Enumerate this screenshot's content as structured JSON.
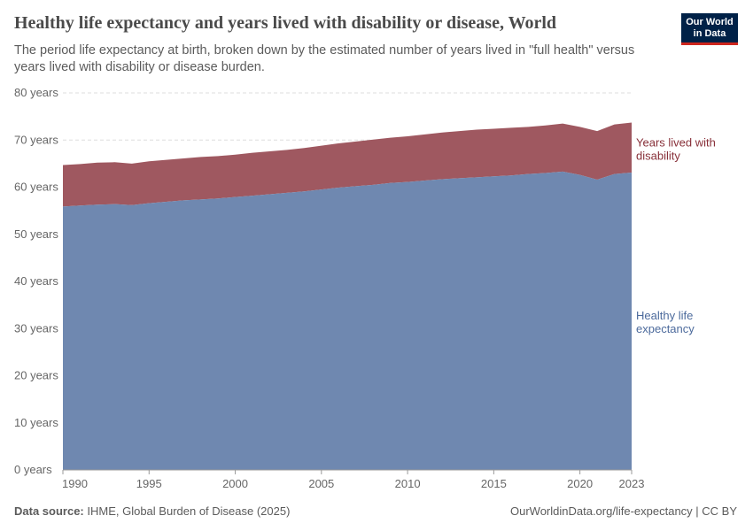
{
  "header": {
    "title": "Healthy life expectancy and years lived with disability or disease, World",
    "subtitle": "The period life expectancy at birth, broken down by the estimated number of years lived in \"full health\" versus years lived with disability or disease burden.",
    "logo_text": "Our World in Data"
  },
  "footer": {
    "source_label": "Data source:",
    "source": "IHME, Global Burden of Disease (2025)",
    "url": "OurWorldinData.org/life-expectancy | CC BY"
  },
  "colors": {
    "healthy": "#6f88b0",
    "disability": "#9f5860",
    "healthy_label": "#4c6a9c",
    "disability_label": "#883039",
    "brand": "#002147"
  },
  "chart_data": {
    "type": "area",
    "stacked": true,
    "title": "Healthy life expectancy and years lived with disability or disease, World",
    "ylim": [
      0,
      80
    ],
    "xlim": [
      1990,
      2023
    ],
    "grid": "horizontal dashed",
    "yticks": [
      0,
      10,
      20,
      30,
      40,
      50,
      60,
      70,
      80
    ],
    "ytick_labels": [
      "0 years",
      "10 years",
      "20 years",
      "30 years",
      "40 years",
      "50 years",
      "60 years",
      "70 years",
      "80 years"
    ],
    "xticks": [
      1990,
      1995,
      2000,
      2005,
      2010,
      2015,
      2020,
      2023
    ],
    "xtick_labels": [
      "1990",
      "1995",
      "2000",
      "2005",
      "2010",
      "2015",
      "2020",
      "2023"
    ],
    "x": [
      1990,
      1991,
      1992,
      1993,
      1994,
      1995,
      1996,
      1997,
      1998,
      1999,
      2000,
      2001,
      2002,
      2003,
      2004,
      2005,
      2006,
      2007,
      2008,
      2009,
      2010,
      2011,
      2012,
      2013,
      2014,
      2015,
      2016,
      2017,
      2018,
      2019,
      2020,
      2021,
      2022,
      2023
    ],
    "series": [
      {
        "name": "Healthy life expectancy",
        "values": [
          55.9,
          56.1,
          56.3,
          56.4,
          56.2,
          56.6,
          56.9,
          57.2,
          57.4,
          57.6,
          57.9,
          58.2,
          58.5,
          58.8,
          59.1,
          59.5,
          59.9,
          60.2,
          60.5,
          60.9,
          61.1,
          61.4,
          61.7,
          61.9,
          62.1,
          62.3,
          62.5,
          62.8,
          63.0,
          63.3,
          62.6,
          61.6,
          62.8,
          63.1
        ]
      },
      {
        "name": "Years lived with disability",
        "values": [
          8.8,
          8.8,
          8.9,
          8.9,
          8.8,
          8.9,
          8.9,
          8.9,
          9.0,
          9.0,
          9.0,
          9.1,
          9.1,
          9.1,
          9.2,
          9.3,
          9.4,
          9.5,
          9.6,
          9.6,
          9.7,
          9.8,
          9.9,
          10.0,
          10.1,
          10.1,
          10.1,
          10.0,
          10.1,
          10.2,
          10.2,
          10.3,
          10.5,
          10.6
        ]
      }
    ],
    "legend": "inline-right",
    "series_labels": [
      "Healthy life expectancy",
      "Years lived with disability"
    ]
  }
}
